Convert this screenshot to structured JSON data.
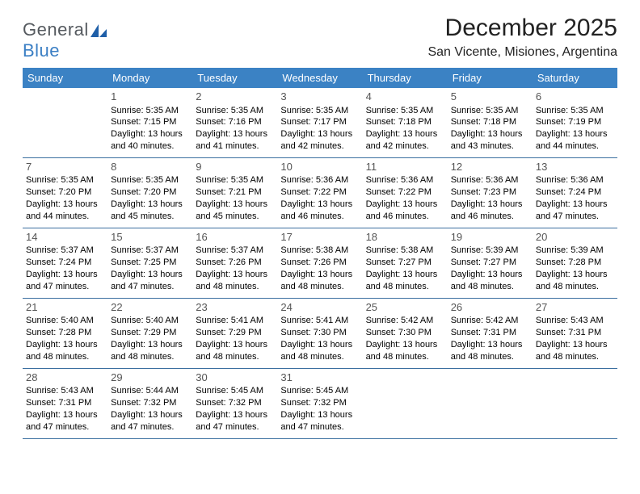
{
  "logo": {
    "general": "General",
    "blue": "Blue"
  },
  "title": "December 2025",
  "location": "San Vicente, Misiones, Argentina",
  "colors": {
    "header_bg": "#3b82c4",
    "header_text": "#ffffff",
    "row_border": "#3b6fa0",
    "logo_gray": "#555a5f",
    "logo_blue": "#3b7fc4",
    "daynum": "#555555"
  },
  "dayNames": [
    "Sunday",
    "Monday",
    "Tuesday",
    "Wednesday",
    "Thursday",
    "Friday",
    "Saturday"
  ],
  "weeks": [
    [
      null,
      {
        "n": "1",
        "sr": "Sunrise: 5:35 AM",
        "ss": "Sunset: 7:15 PM",
        "d1": "Daylight: 13 hours",
        "d2": "and 40 minutes."
      },
      {
        "n": "2",
        "sr": "Sunrise: 5:35 AM",
        "ss": "Sunset: 7:16 PM",
        "d1": "Daylight: 13 hours",
        "d2": "and 41 minutes."
      },
      {
        "n": "3",
        "sr": "Sunrise: 5:35 AM",
        "ss": "Sunset: 7:17 PM",
        "d1": "Daylight: 13 hours",
        "d2": "and 42 minutes."
      },
      {
        "n": "4",
        "sr": "Sunrise: 5:35 AM",
        "ss": "Sunset: 7:18 PM",
        "d1": "Daylight: 13 hours",
        "d2": "and 42 minutes."
      },
      {
        "n": "5",
        "sr": "Sunrise: 5:35 AM",
        "ss": "Sunset: 7:18 PM",
        "d1": "Daylight: 13 hours",
        "d2": "and 43 minutes."
      },
      {
        "n": "6",
        "sr": "Sunrise: 5:35 AM",
        "ss": "Sunset: 7:19 PM",
        "d1": "Daylight: 13 hours",
        "d2": "and 44 minutes."
      }
    ],
    [
      {
        "n": "7",
        "sr": "Sunrise: 5:35 AM",
        "ss": "Sunset: 7:20 PM",
        "d1": "Daylight: 13 hours",
        "d2": "and 44 minutes."
      },
      {
        "n": "8",
        "sr": "Sunrise: 5:35 AM",
        "ss": "Sunset: 7:20 PM",
        "d1": "Daylight: 13 hours",
        "d2": "and 45 minutes."
      },
      {
        "n": "9",
        "sr": "Sunrise: 5:35 AM",
        "ss": "Sunset: 7:21 PM",
        "d1": "Daylight: 13 hours",
        "d2": "and 45 minutes."
      },
      {
        "n": "10",
        "sr": "Sunrise: 5:36 AM",
        "ss": "Sunset: 7:22 PM",
        "d1": "Daylight: 13 hours",
        "d2": "and 46 minutes."
      },
      {
        "n": "11",
        "sr": "Sunrise: 5:36 AM",
        "ss": "Sunset: 7:22 PM",
        "d1": "Daylight: 13 hours",
        "d2": "and 46 minutes."
      },
      {
        "n": "12",
        "sr": "Sunrise: 5:36 AM",
        "ss": "Sunset: 7:23 PM",
        "d1": "Daylight: 13 hours",
        "d2": "and 46 minutes."
      },
      {
        "n": "13",
        "sr": "Sunrise: 5:36 AM",
        "ss": "Sunset: 7:24 PM",
        "d1": "Daylight: 13 hours",
        "d2": "and 47 minutes."
      }
    ],
    [
      {
        "n": "14",
        "sr": "Sunrise: 5:37 AM",
        "ss": "Sunset: 7:24 PM",
        "d1": "Daylight: 13 hours",
        "d2": "and 47 minutes."
      },
      {
        "n": "15",
        "sr": "Sunrise: 5:37 AM",
        "ss": "Sunset: 7:25 PM",
        "d1": "Daylight: 13 hours",
        "d2": "and 47 minutes."
      },
      {
        "n": "16",
        "sr": "Sunrise: 5:37 AM",
        "ss": "Sunset: 7:26 PM",
        "d1": "Daylight: 13 hours",
        "d2": "and 48 minutes."
      },
      {
        "n": "17",
        "sr": "Sunrise: 5:38 AM",
        "ss": "Sunset: 7:26 PM",
        "d1": "Daylight: 13 hours",
        "d2": "and 48 minutes."
      },
      {
        "n": "18",
        "sr": "Sunrise: 5:38 AM",
        "ss": "Sunset: 7:27 PM",
        "d1": "Daylight: 13 hours",
        "d2": "and 48 minutes."
      },
      {
        "n": "19",
        "sr": "Sunrise: 5:39 AM",
        "ss": "Sunset: 7:27 PM",
        "d1": "Daylight: 13 hours",
        "d2": "and 48 minutes."
      },
      {
        "n": "20",
        "sr": "Sunrise: 5:39 AM",
        "ss": "Sunset: 7:28 PM",
        "d1": "Daylight: 13 hours",
        "d2": "and 48 minutes."
      }
    ],
    [
      {
        "n": "21",
        "sr": "Sunrise: 5:40 AM",
        "ss": "Sunset: 7:28 PM",
        "d1": "Daylight: 13 hours",
        "d2": "and 48 minutes."
      },
      {
        "n": "22",
        "sr": "Sunrise: 5:40 AM",
        "ss": "Sunset: 7:29 PM",
        "d1": "Daylight: 13 hours",
        "d2": "and 48 minutes."
      },
      {
        "n": "23",
        "sr": "Sunrise: 5:41 AM",
        "ss": "Sunset: 7:29 PM",
        "d1": "Daylight: 13 hours",
        "d2": "and 48 minutes."
      },
      {
        "n": "24",
        "sr": "Sunrise: 5:41 AM",
        "ss": "Sunset: 7:30 PM",
        "d1": "Daylight: 13 hours",
        "d2": "and 48 minutes."
      },
      {
        "n": "25",
        "sr": "Sunrise: 5:42 AM",
        "ss": "Sunset: 7:30 PM",
        "d1": "Daylight: 13 hours",
        "d2": "and 48 minutes."
      },
      {
        "n": "26",
        "sr": "Sunrise: 5:42 AM",
        "ss": "Sunset: 7:31 PM",
        "d1": "Daylight: 13 hours",
        "d2": "and 48 minutes."
      },
      {
        "n": "27",
        "sr": "Sunrise: 5:43 AM",
        "ss": "Sunset: 7:31 PM",
        "d1": "Daylight: 13 hours",
        "d2": "and 48 minutes."
      }
    ],
    [
      {
        "n": "28",
        "sr": "Sunrise: 5:43 AM",
        "ss": "Sunset: 7:31 PM",
        "d1": "Daylight: 13 hours",
        "d2": "and 47 minutes."
      },
      {
        "n": "29",
        "sr": "Sunrise: 5:44 AM",
        "ss": "Sunset: 7:32 PM",
        "d1": "Daylight: 13 hours",
        "d2": "and 47 minutes."
      },
      {
        "n": "30",
        "sr": "Sunrise: 5:45 AM",
        "ss": "Sunset: 7:32 PM",
        "d1": "Daylight: 13 hours",
        "d2": "and 47 minutes."
      },
      {
        "n": "31",
        "sr": "Sunrise: 5:45 AM",
        "ss": "Sunset: 7:32 PM",
        "d1": "Daylight: 13 hours",
        "d2": "and 47 minutes."
      },
      null,
      null,
      null
    ]
  ]
}
